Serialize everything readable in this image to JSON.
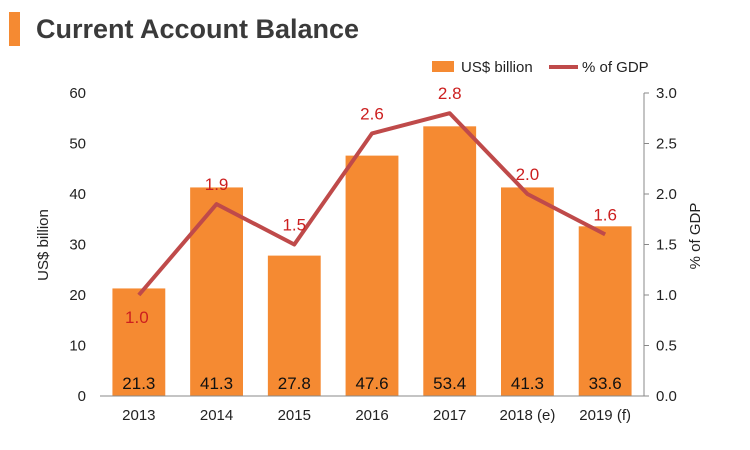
{
  "colors": {
    "accent": "#f58a32",
    "bar": "#f58a32",
    "line": "#bf4a4a",
    "line_label": "#cc1f1f",
    "axis": "#888888"
  },
  "header": {
    "title": "Current Account Balance"
  },
  "chart_data": {
    "type": "bar",
    "categories": [
      "2013",
      "2014",
      "2015",
      "2016",
      "2017",
      "2018 (e)",
      "2019 (f)"
    ],
    "series": [
      {
        "name": "US$ billion",
        "type": "bar",
        "axis": "left",
        "values": [
          21.3,
          41.3,
          27.8,
          47.6,
          53.4,
          41.3,
          33.6
        ],
        "labels": [
          "21.3",
          "41.3",
          "27.8",
          "47.6",
          "53.4",
          "41.3",
          "33.6"
        ]
      },
      {
        "name": "% of GDP",
        "type": "line",
        "axis": "right",
        "values": [
          1.0,
          1.9,
          1.5,
          2.6,
          2.8,
          2.0,
          1.6
        ],
        "labels": [
          "1.0",
          "1.9",
          "1.5",
          "2.6",
          "2.8",
          "2.0",
          "1.6"
        ]
      }
    ],
    "ylabel": "US$ billion",
    "y2label": "% of GDP",
    "ylim": [
      0,
      60
    ],
    "y2lim": [
      0,
      3.0
    ],
    "yticks": [
      "0",
      "10",
      "20",
      "30",
      "40",
      "50",
      "60"
    ],
    "y2ticks": [
      "0.0",
      "0.5",
      "1.0",
      "1.5",
      "2.0",
      "2.5",
      "3.0"
    ],
    "legend_position": "top-right",
    "grid": false
  }
}
